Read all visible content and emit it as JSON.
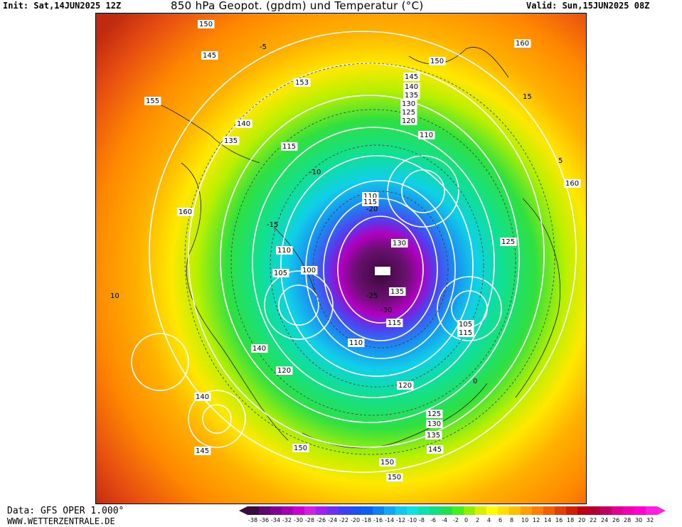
{
  "header": {
    "init": "Init: Sat,14JUN2025 12Z",
    "title": "850 hPa Geopot. (gpdm) und Temperatur (°C)",
    "valid": "Valid: Sun,15JUN2025 08Z"
  },
  "footer": {
    "data_source": "Data: GFS OPER 1.000°",
    "website": "WWW.WETTERZENTRALE.DE"
  },
  "colorbar": {
    "labels": [
      "-38",
      "-36",
      "-34",
      "-32",
      "-30",
      "-28",
      "-26",
      "-24",
      "-22",
      "-20",
      "-18",
      "-16",
      "-14",
      "-12",
      "-10",
      "-8",
      "-6",
      "-4",
      "-2",
      "0",
      "2",
      "4",
      "6",
      "8",
      "10",
      "12",
      "14",
      "16",
      "18",
      "20",
      "22",
      "24",
      "26",
      "28",
      "30",
      "32"
    ],
    "colors": [
      "#3a0a3a",
      "#5a0a6a",
      "#800090",
      "#a000b0",
      "#c800d0",
      "#d020e0",
      "#a020f0",
      "#7030f0",
      "#4040f0",
      "#2050f0",
      "#1060f0",
      "#1080f0",
      "#10a8f0",
      "#10c8f0",
      "#10e0e0",
      "#10e0b0",
      "#10e080",
      "#20e050",
      "#40f020",
      "#90f000",
      "#d8f000",
      "#ffff00",
      "#ffe000",
      "#ffc000",
      "#ffa000",
      "#ff8000",
      "#f06000",
      "#e04000",
      "#d02000",
      "#c00010",
      "#b00030",
      "#c00060",
      "#e00090",
      "#f000b0",
      "#ff00d0",
      "#ff20e0"
    ]
  },
  "map": {
    "contour_labels": [
      "150",
      "145",
      "155",
      "140",
      "135",
      "153",
      "150",
      "145",
      "140",
      "135",
      "130",
      "125",
      "120",
      "110",
      "115",
      "160",
      "160",
      "110",
      "115",
      "130",
      "135",
      "115",
      "110",
      "105",
      "100",
      "110",
      "125",
      "105",
      "115",
      "120",
      "120",
      "125",
      "130",
      "135",
      "145",
      "150",
      "140",
      "140",
      "145",
      "150",
      "150",
      "160"
    ],
    "temperature_labels": [
      "-5",
      "-10",
      "-15",
      "-20",
      "-25",
      "-30",
      "0",
      "5",
      "10",
      "15"
    ]
  }
}
